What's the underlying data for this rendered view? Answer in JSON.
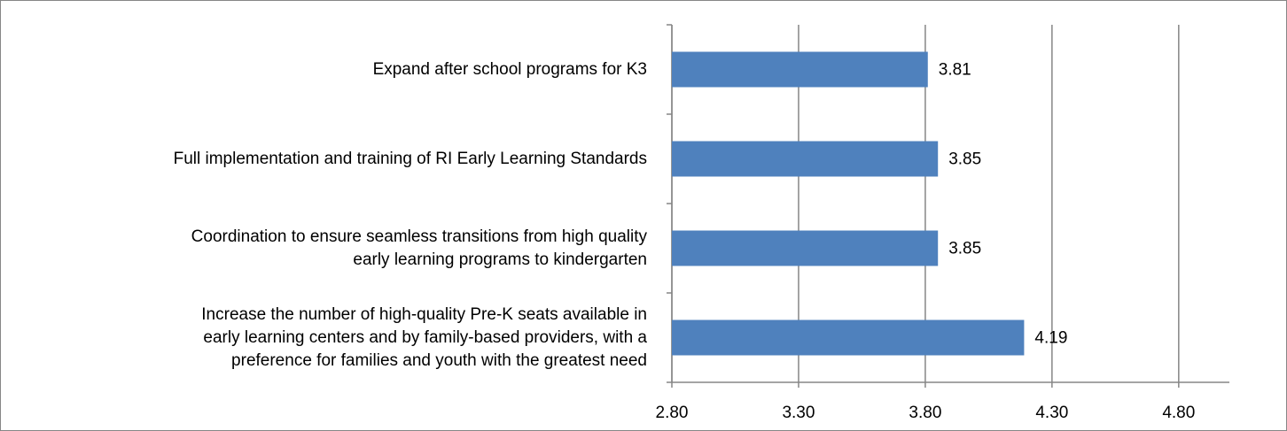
{
  "chart_data": {
    "type": "hbar",
    "categories": [
      "Expand after school programs for K3",
      "Full implementation and training of RI Early Learning Standards",
      "Coordination to ensure seamless transitions from high quality\nearly learning programs to kindergarten",
      "Increase the number of high-quality Pre-K seats available in\nearly learning centers and by family-based providers, with a\npreference for families and youth with the greatest need"
    ],
    "values": [
      3.81,
      3.85,
      3.85,
      4.19
    ],
    "color": "#4f81bd",
    "xlim": [
      2.8,
      5.0
    ],
    "xticks": [
      {
        "value": 2.8,
        "label": "2.80"
      },
      {
        "value": 3.3,
        "label": "3.30"
      },
      {
        "value": 3.8,
        "label": "3.80"
      },
      {
        "value": 4.3,
        "label": "4.30"
      },
      {
        "value": 4.8,
        "label": "4.80"
      }
    ],
    "grid": true
  }
}
